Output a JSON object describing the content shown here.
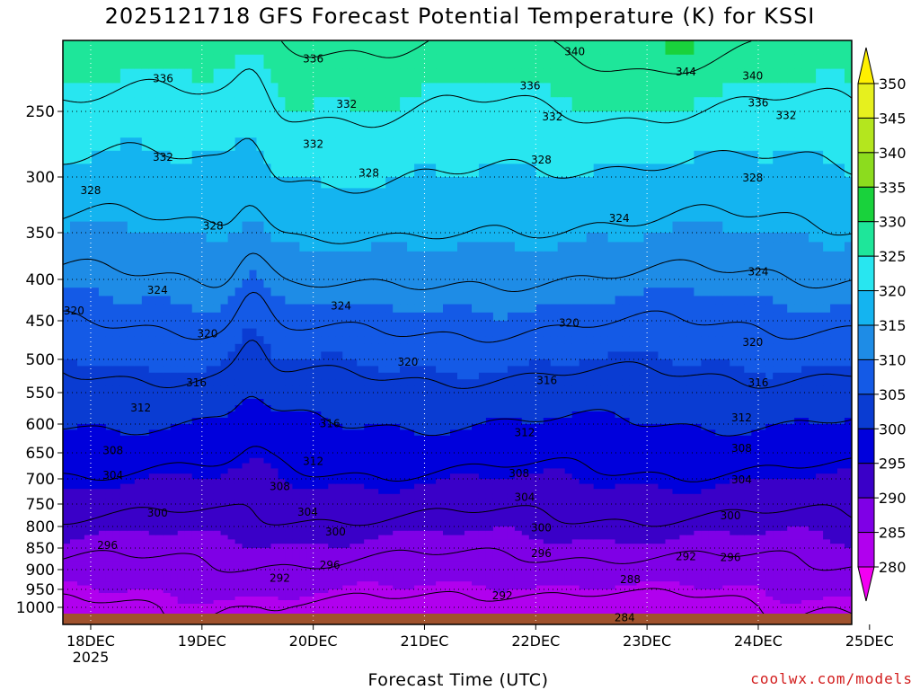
{
  "chart_data": {
    "type": "heatmap",
    "title": "2025121718 GFS Forecast Potential Temperature (K) for KSSI",
    "xlabel": "Forecast Time (UTC)",
    "ylabel": "",
    "x_ticks": [
      "18DEC",
      "19DEC",
      "20DEC",
      "21DEC",
      "22DEC",
      "23DEC",
      "24DEC",
      "25DEC"
    ],
    "x_year": "2025",
    "y_ticks": [
      "250",
      "300",
      "350",
      "400",
      "450",
      "500",
      "550",
      "600",
      "650",
      "700",
      "750",
      "800",
      "850",
      "900",
      "950",
      "1000"
    ],
    "y_values": [
      250,
      300,
      350,
      400,
      450,
      500,
      550,
      600,
      650,
      700,
      750,
      800,
      850,
      900,
      950,
      1000
    ],
    "ylim": [
      200,
      1020
    ],
    "colorbar": {
      "levels": [
        "280",
        "285",
        "290",
        "295",
        "300",
        "305",
        "310",
        "315",
        "320",
        "325",
        "330",
        "335",
        "340",
        "345",
        "350"
      ],
      "colors": [
        "#f200f2",
        "#b100ee",
        "#7f00e6",
        "#3a00c8",
        "#0000dc",
        "#0a3cd2",
        "#145ae6",
        "#1e8ce6",
        "#14b4f0",
        "#28e6f0",
        "#1ee69a",
        "#19d23c",
        "#8cdc1e",
        "#b4e61e",
        "#e6f01e",
        "#fff000"
      ]
    },
    "contour_labels": [
      {
        "text": "340",
        "t": 4.6,
        "p": 208
      },
      {
        "text": "344",
        "t": 5.6,
        "p": 222
      },
      {
        "text": "336",
        "t": 2.25,
        "p": 213
      },
      {
        "text": "336",
        "t": 0.9,
        "p": 227
      },
      {
        "text": "336",
        "t": 4.2,
        "p": 232
      },
      {
        "text": "340",
        "t": 6.2,
        "p": 225
      },
      {
        "text": "336",
        "t": 6.25,
        "p": 244
      },
      {
        "text": "332",
        "t": 2.55,
        "p": 245
      },
      {
        "text": "332",
        "t": 4.4,
        "p": 254
      },
      {
        "text": "332",
        "t": 6.5,
        "p": 253
      },
      {
        "text": "332",
        "t": 2.25,
        "p": 275
      },
      {
        "text": "332",
        "t": 0.9,
        "p": 285
      },
      {
        "text": "328",
        "t": 2.75,
        "p": 297
      },
      {
        "text": "328",
        "t": 4.3,
        "p": 287
      },
      {
        "text": "328",
        "t": 6.2,
        "p": 301
      },
      {
        "text": "328",
        "t": 0.25,
        "p": 312
      },
      {
        "text": "328",
        "t": 1.35,
        "p": 344
      },
      {
        "text": "324",
        "t": 5.0,
        "p": 337
      },
      {
        "text": "324",
        "t": 6.25,
        "p": 392
      },
      {
        "text": "324",
        "t": 0.85,
        "p": 413
      },
      {
        "text": "324",
        "t": 2.5,
        "p": 432
      },
      {
        "text": "320",
        "t": 0.1,
        "p": 438
      },
      {
        "text": "320",
        "t": 4.55,
        "p": 453
      },
      {
        "text": "320",
        "t": 1.3,
        "p": 467
      },
      {
        "text": "320",
        "t": 6.2,
        "p": 478
      },
      {
        "text": "320",
        "t": 3.1,
        "p": 504
      },
      {
        "text": "316",
        "t": 4.35,
        "p": 532
      },
      {
        "text": "316",
        "t": 1.2,
        "p": 535
      },
      {
        "text": "316",
        "t": 6.25,
        "p": 535
      },
      {
        "text": "312",
        "t": 0.7,
        "p": 574
      },
      {
        "text": "312",
        "t": 6.1,
        "p": 590
      },
      {
        "text": "312",
        "t": 4.15,
        "p": 615
      },
      {
        "text": "316",
        "t": 2.4,
        "p": 599
      },
      {
        "text": "308",
        "t": 0.45,
        "p": 646
      },
      {
        "text": "308",
        "t": 6.1,
        "p": 642
      },
      {
        "text": "312",
        "t": 2.25,
        "p": 666
      },
      {
        "text": "308",
        "t": 4.1,
        "p": 690
      },
      {
        "text": "304",
        "t": 0.45,
        "p": 693
      },
      {
        "text": "304",
        "t": 6.1,
        "p": 702
      },
      {
        "text": "308",
        "t": 1.95,
        "p": 715
      },
      {
        "text": "304",
        "t": 4.15,
        "p": 737
      },
      {
        "text": "304",
        "t": 2.2,
        "p": 768
      },
      {
        "text": "300",
        "t": 0.85,
        "p": 770
      },
      {
        "text": "300",
        "t": 6.0,
        "p": 776
      },
      {
        "text": "300",
        "t": 2.45,
        "p": 812
      },
      {
        "text": "300",
        "t": 4.3,
        "p": 803
      },
      {
        "text": "296",
        "t": 0.4,
        "p": 844
      },
      {
        "text": "296",
        "t": 4.3,
        "p": 862
      },
      {
        "text": "296",
        "t": 6.0,
        "p": 872
      },
      {
        "text": "292",
        "t": 5.6,
        "p": 870
      },
      {
        "text": "296",
        "t": 2.4,
        "p": 890
      },
      {
        "text": "292",
        "t": 1.95,
        "p": 922
      },
      {
        "text": "288",
        "t": 5.1,
        "p": 925
      },
      {
        "text": "292",
        "t": 3.95,
        "p": 968
      },
      {
        "text": "284",
        "t": 5.05,
        "p": 1012
      }
    ]
  },
  "credit": "coolwx.com/models"
}
